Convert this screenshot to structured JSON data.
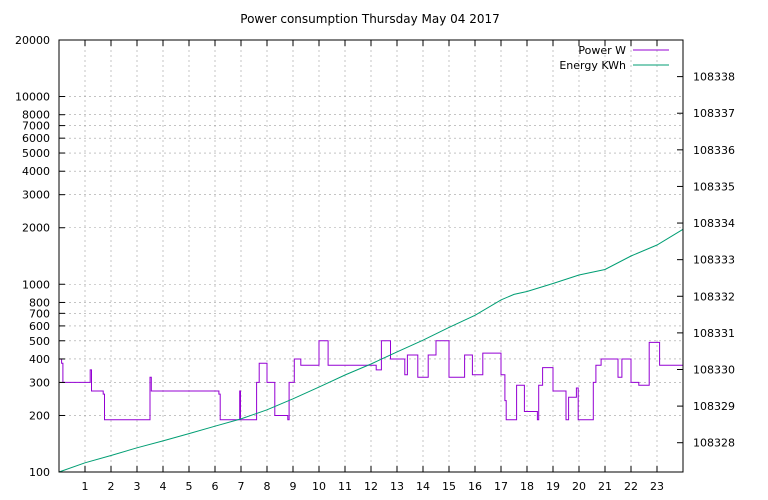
{
  "chart_data": {
    "type": "line",
    "title": "Power consumption Thursday May 04 2017",
    "xlabel": "",
    "ylabel": "",
    "y2label": "",
    "grid": true,
    "legend_position": "top-right",
    "xlim": [
      0,
      24
    ],
    "ylim": [
      100,
      20000
    ],
    "yscale": "log",
    "y2lim": [
      108327.2,
      108339.0
    ],
    "x_ticks": [
      1,
      2,
      3,
      4,
      5,
      6,
      7,
      8,
      9,
      10,
      11,
      12,
      13,
      14,
      15,
      16,
      17,
      18,
      19,
      20,
      21,
      22,
      23
    ],
    "y_ticks": [
      {
        "v": 20000,
        "label": "20000"
      },
      {
        "v": 10000,
        "label": "10000"
      },
      {
        "v": 8000,
        "label": "8000"
      },
      {
        "v": 7000,
        "label": "7000"
      },
      {
        "v": 6000,
        "label": "6000"
      },
      {
        "v": 5000,
        "label": "5000"
      },
      {
        "v": 4000,
        "label": "4000"
      },
      {
        "v": 3000,
        "label": "3000"
      },
      {
        "v": 2000,
        "label": "2000"
      },
      {
        "v": 1000,
        "label": "1000"
      },
      {
        "v": 800,
        "label": "800"
      },
      {
        "v": 700,
        "label": "700"
      },
      {
        "v": 600,
        "label": "600"
      },
      {
        "v": 500,
        "label": "500"
      },
      {
        "v": 400,
        "label": "400"
      },
      {
        "v": 300,
        "label": "300"
      },
      {
        "v": 200,
        "label": "200"
      },
      {
        "v": 100,
        "label": "100"
      }
    ],
    "y2_ticks": [
      108328,
      108329,
      108330,
      108331,
      108332,
      108333,
      108334,
      108335,
      108336,
      108337,
      108338
    ],
    "colors": {
      "power": "#9400d3",
      "energy": "#009e73"
    },
    "series": [
      {
        "name": "Power W",
        "axis": "y",
        "color": "#9400d3",
        "points": [
          [
            0.0,
            400
          ],
          [
            0.1,
            400
          ],
          [
            0.1,
            380
          ],
          [
            0.15,
            380
          ],
          [
            0.15,
            300
          ],
          [
            1.2,
            300
          ],
          [
            1.2,
            350
          ],
          [
            1.25,
            350
          ],
          [
            1.25,
            270
          ],
          [
            1.7,
            270
          ],
          [
            1.7,
            260
          ],
          [
            1.75,
            260
          ],
          [
            1.75,
            190
          ],
          [
            3.5,
            190
          ],
          [
            3.5,
            320
          ],
          [
            3.55,
            320
          ],
          [
            3.55,
            270
          ],
          [
            6.15,
            270
          ],
          [
            6.15,
            260
          ],
          [
            6.2,
            260
          ],
          [
            6.2,
            190
          ],
          [
            6.95,
            190
          ],
          [
            6.95,
            270
          ],
          [
            6.98,
            270
          ],
          [
            6.98,
            190
          ],
          [
            7.6,
            190
          ],
          [
            7.6,
            300
          ],
          [
            7.7,
            300
          ],
          [
            7.7,
            380
          ],
          [
            8.0,
            380
          ],
          [
            8.0,
            300
          ],
          [
            8.3,
            300
          ],
          [
            8.3,
            200
          ],
          [
            8.8,
            200
          ],
          [
            8.8,
            190
          ],
          [
            8.85,
            190
          ],
          [
            8.85,
            300
          ],
          [
            9.05,
            300
          ],
          [
            9.05,
            400
          ],
          [
            9.3,
            400
          ],
          [
            9.3,
            370
          ],
          [
            10.0,
            370
          ],
          [
            10.0,
            500
          ],
          [
            10.35,
            500
          ],
          [
            10.35,
            370
          ],
          [
            12.2,
            370
          ],
          [
            12.2,
            350
          ],
          [
            12.4,
            350
          ],
          [
            12.4,
            500
          ],
          [
            12.75,
            500
          ],
          [
            12.75,
            400
          ],
          [
            13.3,
            400
          ],
          [
            13.3,
            330
          ],
          [
            13.4,
            330
          ],
          [
            13.4,
            420
          ],
          [
            13.8,
            420
          ],
          [
            13.8,
            320
          ],
          [
            14.2,
            320
          ],
          [
            14.2,
            420
          ],
          [
            14.5,
            420
          ],
          [
            14.5,
            500
          ],
          [
            15.0,
            500
          ],
          [
            15.0,
            320
          ],
          [
            15.6,
            320
          ],
          [
            15.6,
            420
          ],
          [
            15.9,
            420
          ],
          [
            15.9,
            330
          ],
          [
            16.3,
            330
          ],
          [
            16.3,
            430
          ],
          [
            17.0,
            430
          ],
          [
            17.0,
            330
          ],
          [
            17.15,
            330
          ],
          [
            17.15,
            240
          ],
          [
            17.2,
            240
          ],
          [
            17.2,
            190
          ],
          [
            17.6,
            190
          ],
          [
            17.6,
            290
          ],
          [
            17.9,
            290
          ],
          [
            17.9,
            210
          ],
          [
            18.4,
            210
          ],
          [
            18.4,
            190
          ],
          [
            18.45,
            190
          ],
          [
            18.45,
            290
          ],
          [
            18.6,
            290
          ],
          [
            18.6,
            360
          ],
          [
            19.0,
            360
          ],
          [
            19.0,
            270
          ],
          [
            19.5,
            270
          ],
          [
            19.5,
            190
          ],
          [
            19.6,
            190
          ],
          [
            19.6,
            250
          ],
          [
            19.9,
            250
          ],
          [
            19.9,
            280
          ],
          [
            19.97,
            280
          ],
          [
            19.97,
            190
          ],
          [
            20.55,
            190
          ],
          [
            20.55,
            300
          ],
          [
            20.65,
            300
          ],
          [
            20.65,
            370
          ],
          [
            20.85,
            370
          ],
          [
            20.85,
            400
          ],
          [
            21.5,
            400
          ],
          [
            21.5,
            320
          ],
          [
            21.65,
            320
          ],
          [
            21.65,
            400
          ],
          [
            22.0,
            400
          ],
          [
            22.0,
            300
          ],
          [
            22.3,
            300
          ],
          [
            22.3,
            290
          ],
          [
            22.7,
            290
          ],
          [
            22.7,
            490
          ],
          [
            23.1,
            490
          ],
          [
            23.1,
            370
          ],
          [
            24.0,
            370
          ]
        ]
      },
      {
        "name": "Energy KWh",
        "axis": "y2",
        "color": "#009e73",
        "points": [
          [
            0.0,
            108327.2
          ],
          [
            1.0,
            108327.45
          ],
          [
            2.0,
            108327.65
          ],
          [
            3.0,
            108327.86
          ],
          [
            4.0,
            108328.05
          ],
          [
            5.0,
            108328.25
          ],
          [
            6.0,
            108328.45
          ],
          [
            7.0,
            108328.65
          ],
          [
            8.0,
            108328.9
          ],
          [
            9.0,
            108329.2
          ],
          [
            10.0,
            108329.52
          ],
          [
            11.0,
            108329.85
          ],
          [
            12.0,
            108330.15
          ],
          [
            13.0,
            108330.48
          ],
          [
            14.0,
            108330.8
          ],
          [
            15.0,
            108331.15
          ],
          [
            16.0,
            108331.48
          ],
          [
            17.0,
            108331.9
          ],
          [
            17.5,
            108332.05
          ],
          [
            18.0,
            108332.13
          ],
          [
            19.0,
            108332.35
          ],
          [
            20.0,
            108332.58
          ],
          [
            21.0,
            108332.73
          ],
          [
            22.0,
            108333.1
          ],
          [
            23.0,
            108333.4
          ],
          [
            24.0,
            108333.83
          ]
        ]
      }
    ]
  }
}
